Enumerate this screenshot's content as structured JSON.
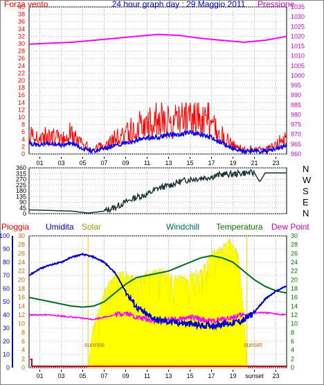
{
  "header": {
    "left_title": "Forza vento",
    "center_title": "24 hour graph day : 29 Maggio 2011",
    "right_title": "Pressione"
  },
  "hours": [
    "01",
    "03",
    "05",
    "07",
    "09",
    "11",
    "13",
    "15",
    "17",
    "19",
    "21",
    "23"
  ],
  "bottom_hours": [
    "01",
    "03",
    "05",
    "07",
    "09",
    "11",
    "13",
    "15",
    "17",
    "19",
    "sunset",
    "23"
  ],
  "colors": {
    "wind": "#ff0000",
    "wind_avg": "#0000ff",
    "pressure": "#ff00ff",
    "direction": "#1b3535",
    "humidity": "#0000cc",
    "solar": "#ffff00",
    "windchill": "#006666",
    "temperature": "#007700",
    "dewpoint": "#ff00ff",
    "rain": "#cc0000"
  },
  "chart_data": [
    {
      "type": "line",
      "name": "wind-pressure",
      "x_range": [
        0,
        24
      ],
      "ylim_left": [
        0,
        40
      ],
      "yticks_left": [
        0,
        2,
        4,
        6,
        8,
        10,
        12,
        14,
        16,
        18,
        20,
        22,
        24,
        26,
        28,
        30,
        32,
        34,
        36,
        38,
        40
      ],
      "ylim_right": [
        960,
        1035
      ],
      "yticks_right": [
        960,
        965,
        970,
        975,
        980,
        985,
        990,
        995,
        1000,
        1005,
        1010,
        1015,
        1020,
        1025,
        1030,
        1035
      ],
      "series": [
        {
          "name": "Forza vento",
          "x": [
            0,
            1,
            2,
            3,
            4,
            5,
            6,
            7,
            8,
            9,
            10,
            11,
            12,
            13,
            14,
            15,
            16,
            17,
            18,
            19,
            20,
            21,
            22,
            23,
            24
          ],
          "values": [
            4,
            3,
            4,
            3,
            4,
            2,
            1,
            2,
            3,
            4,
            5,
            6,
            6,
            7,
            7,
            8,
            7,
            6,
            4,
            2,
            1,
            1,
            1,
            2,
            3
          ]
        },
        {
          "name": "Pressione",
          "x": [
            0,
            2,
            4,
            6,
            8,
            10,
            12,
            14,
            16,
            18,
            20,
            22,
            24
          ],
          "values": [
            1016,
            1016.5,
            1017,
            1018,
            1019,
            1020,
            1021,
            1020.5,
            1019,
            1018,
            1017,
            1018,
            1020
          ]
        }
      ]
    },
    {
      "type": "line",
      "name": "wind-direction",
      "x_range": [
        0,
        24
      ],
      "ylim": [
        0,
        360
      ],
      "yticks": [
        0,
        45,
        90,
        135,
        180,
        225,
        270,
        315,
        360
      ],
      "side_labels": [
        "N",
        "W",
        "S",
        "E",
        "N"
      ],
      "series": [
        {
          "name": "direzione",
          "x": [
            0,
            2,
            4,
            5.5,
            6,
            7,
            8,
            9,
            10,
            11,
            12,
            13,
            14,
            15,
            16,
            17,
            18,
            19,
            20,
            21,
            21.5,
            22,
            24
          ],
          "values": [
            30,
            25,
            20,
            5,
            10,
            20,
            50,
            90,
            130,
            150,
            200,
            220,
            250,
            270,
            280,
            290,
            310,
            310,
            320,
            320,
            250,
            320,
            320
          ]
        }
      ]
    },
    {
      "type": "line",
      "name": "temperature-humidity",
      "x_range": [
        0,
        24
      ],
      "ylim_humidity": [
        0,
        100
      ],
      "yticks_humidity": [
        0,
        10,
        20,
        30,
        40,
        50,
        60,
        70,
        80,
        90,
        100
      ],
      "ylim_temp": [
        0,
        30
      ],
      "yticks_temp": [
        0,
        2,
        4,
        6,
        8,
        10,
        12,
        14,
        16,
        18,
        20,
        22,
        24,
        26,
        28,
        30
      ],
      "legend": [
        "Pioggia",
        "Umidita",
        "Solar",
        "Windchill",
        "Temperatura",
        "Dew Point"
      ],
      "annotations": [
        "sunrise",
        "sunset"
      ],
      "sunrise_hour": 5.5,
      "sunset_hour": 20.3,
      "series": [
        {
          "name": "Umidita",
          "x": [
            0,
            1,
            2,
            3,
            4,
            5,
            5.5,
            6,
            7,
            8,
            9,
            10,
            11,
            12,
            13,
            14,
            15,
            16,
            17,
            18,
            19,
            20,
            21,
            22,
            23,
            24
          ],
          "values": [
            70,
            75,
            78,
            80,
            84,
            86,
            85,
            84,
            80,
            72,
            58,
            46,
            40,
            36,
            35,
            34,
            33,
            32,
            32,
            33,
            34,
            36,
            42,
            52,
            58,
            62
          ]
        },
        {
          "name": "Temperatura",
          "x": [
            0,
            1,
            2,
            3,
            4,
            5,
            6,
            7,
            8,
            9,
            10,
            11,
            12,
            13,
            14,
            15,
            16,
            17,
            18,
            19,
            20,
            21,
            22,
            23,
            24
          ],
          "values": [
            16,
            15.5,
            15,
            14.5,
            14,
            13.8,
            14,
            15,
            17,
            19,
            20.5,
            21,
            21.5,
            22,
            23,
            24,
            25,
            25.5,
            25,
            24,
            22,
            20,
            18.5,
            17.5,
            17
          ]
        },
        {
          "name": "Dew Point",
          "x": [
            0,
            2,
            4,
            6,
            8,
            9,
            10,
            11,
            12,
            13,
            14,
            15,
            16,
            17,
            18,
            19,
            20,
            21,
            22,
            24
          ],
          "values": [
            12,
            12,
            11.5,
            11,
            12,
            12.5,
            11.5,
            11,
            10.5,
            11,
            11,
            11.5,
            11,
            10.5,
            11,
            11.5,
            12,
            12.5,
            12.5,
            12
          ]
        },
        {
          "name": "Solar",
          "x": [
            5.5,
            6,
            7,
            8,
            9,
            10,
            11,
            12,
            13,
            14,
            15,
            16,
            17,
            18,
            18.5,
            19,
            19.5,
            20,
            20.3
          ],
          "values": [
            0,
            10,
            18,
            22,
            22,
            21,
            22,
            23,
            22,
            21,
            22,
            23,
            27,
            28,
            30,
            29,
            26,
            14,
            0
          ]
        }
      ]
    }
  ]
}
